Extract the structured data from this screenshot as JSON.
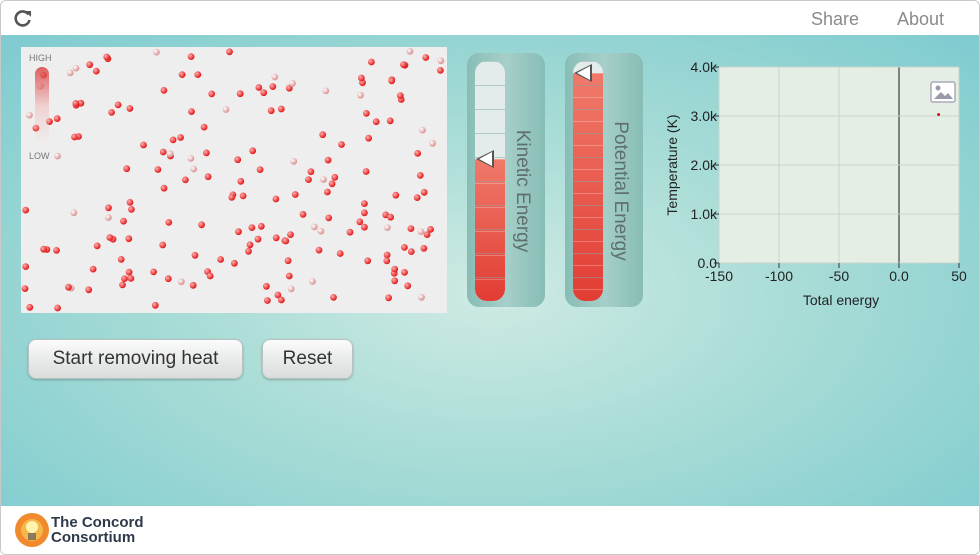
{
  "topbar": {
    "share_label": "Share",
    "about_label": "About"
  },
  "simulation": {
    "thermometer": {
      "high_label": "HIGH",
      "low_label": "LOW"
    }
  },
  "energy_bars": {
    "kinetic": {
      "label": "Kinetic Energy",
      "level": 0.59
    },
    "potential": {
      "label": "Potential Energy",
      "level": 0.95
    }
  },
  "controls": {
    "start_removing_heat_label": "Start removing heat",
    "reset_label": "Reset"
  },
  "chart_data": {
    "type": "scatter",
    "xlabel": "Total energy",
    "ylabel": "Temperature (K)",
    "xlim": [
      -150,
      50
    ],
    "ylim": [
      0,
      4000
    ],
    "x_ticks": [
      "-150",
      "-100",
      "-50",
      "0.0",
      "50"
    ],
    "y_ticks": [
      "0.0",
      "1.0k",
      "2.0k",
      "3.0k",
      "4.0k"
    ],
    "grid": true,
    "points": [
      {
        "x": 33,
        "y": 3030
      }
    ],
    "point_color": "#cc0000"
  },
  "footer": {
    "logo_line1": "The Concord",
    "logo_line2": "Consortium"
  },
  "colors": {
    "accent": "#e23c34",
    "teal": "#7ecbd0"
  }
}
